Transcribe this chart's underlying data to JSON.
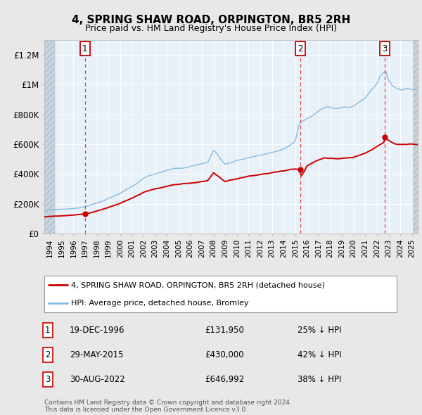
{
  "title": "4, SPRING SHAW ROAD, ORPINGTON, BR5 2RH",
  "subtitle": "Price paid vs. HM Land Registry's House Price Index (HPI)",
  "ylim": [
    0,
    1300000
  ],
  "yticks": [
    0,
    200000,
    400000,
    600000,
    800000,
    1000000,
    1200000
  ],
  "ytick_labels": [
    "£0",
    "£200K",
    "£400K",
    "£600K",
    "£800K",
    "£1M",
    "£1.2M"
  ],
  "xlim_start": 1993.5,
  "xlim_end": 2025.5,
  "bg_color": "#e8e8e8",
  "plot_bg_color": "#e8f0f8",
  "hatch_color": "#c8d4e0",
  "grid_color": "#ffffff",
  "red_line_color": "#cc0000",
  "blue_line_color": "#88bbdd",
  "sale_marker_color": "#cc0000",
  "dashed_line_color": "#dd4444",
  "transactions": [
    {
      "date_dec": 1996.97,
      "price": 131950,
      "label": "1"
    },
    {
      "date_dec": 2015.41,
      "price": 430000,
      "label": "2"
    },
    {
      "date_dec": 2022.66,
      "price": 646992,
      "label": "3"
    }
  ],
  "table_rows": [
    {
      "num": "1",
      "date": "19-DEC-1996",
      "price": "£131,950",
      "hpi": "25% ↓ HPI"
    },
    {
      "num": "2",
      "date": "29-MAY-2015",
      "price": "£430,000",
      "hpi": "42% ↓ HPI"
    },
    {
      "num": "3",
      "date": "30-AUG-2022",
      "price": "£646,992",
      "hpi": "38% ↓ HPI"
    }
  ],
  "footer": "Contains HM Land Registry data © Crown copyright and database right 2024.\nThis data is licensed under the Open Government Licence v3.0.",
  "legend_line1": "4, SPRING SHAW ROAD, ORPINGTON, BR5 2RH (detached house)",
  "legend_line2": "HPI: Average price, detached house, Bromley"
}
